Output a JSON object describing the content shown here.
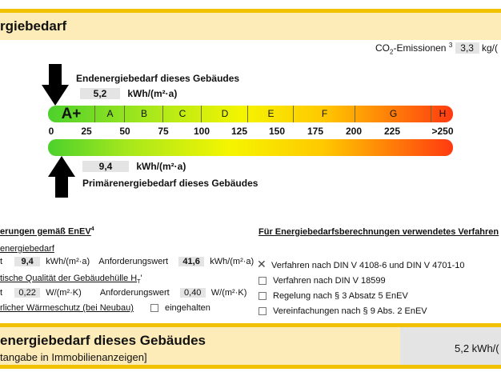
{
  "header": {
    "title": "rgiebedarf"
  },
  "co2": {
    "label": "CO",
    "sub": "2",
    "suffix": "-Emissionen",
    "sup": "3",
    "value": "3,3",
    "unit": "kg/("
  },
  "end": {
    "label": "Endenergiebedarf dieses Gebäudes",
    "value": "5,2",
    "unit": "kWh/(m²·a)"
  },
  "primary": {
    "label": "Primärenergiebedarf dieses Gebäudes",
    "value": "9,4",
    "unit": "kWh/(m²·a)"
  },
  "scale": {
    "classes": [
      "A+",
      "A",
      "B",
      "C",
      "D",
      "E",
      "F",
      "G",
      "H"
    ],
    "ticks": [
      "0",
      "25",
      "50",
      "75",
      "100",
      "125",
      "150",
      "175",
      "200",
      "225",
      ">250"
    ],
    "colors": [
      "#4cd12c",
      "#f5f500",
      "#ff3a10"
    ]
  },
  "req": {
    "title": "erungen gemäß EnEV",
    "sup": "4",
    "primary_title": "energiebedarf",
    "ist": "t",
    "primary_value": "9,4",
    "primary_unit": "kWh/(m²·a)",
    "anf_label": "Anforderungswert",
    "primary_req": "41,6",
    "primary_req_unit": "kWh/(m²·a)",
    "hull_title": "tische Qualität der Gebäudehülle H",
    "hull_sub": "T",
    "hull_sup": "'",
    "hull_value": "0,22",
    "hull_unit": "W/(m²·K)",
    "hull_req": "0,40",
    "hull_req_unit": "W/(m²·K)",
    "waerme": "rlicher Wärmeschutz (bei Neubau)",
    "eingehalten": "eingehalten"
  },
  "methods": {
    "title": "Für Energiebedarfsberechnungen verwendetes Verfahren",
    "items": [
      {
        "label": "Verfahren nach DIN V 4108-6 und DIN V 4701-10",
        "checked": true
      },
      {
        "label": "Verfahren nach DIN V 18599",
        "checked": false
      },
      {
        "label": "Regelung nach § 3 Absatz 5 EnEV",
        "checked": false
      },
      {
        "label": "Vereinfachungen nach § 9 Abs. 2 EnEV",
        "checked": false
      }
    ]
  },
  "footer": {
    "title": "energiebedarf dieses Gebäudes",
    "subtitle": "tangabe in Immobilienanzeigen]",
    "value": "5,2 kWh/("
  }
}
